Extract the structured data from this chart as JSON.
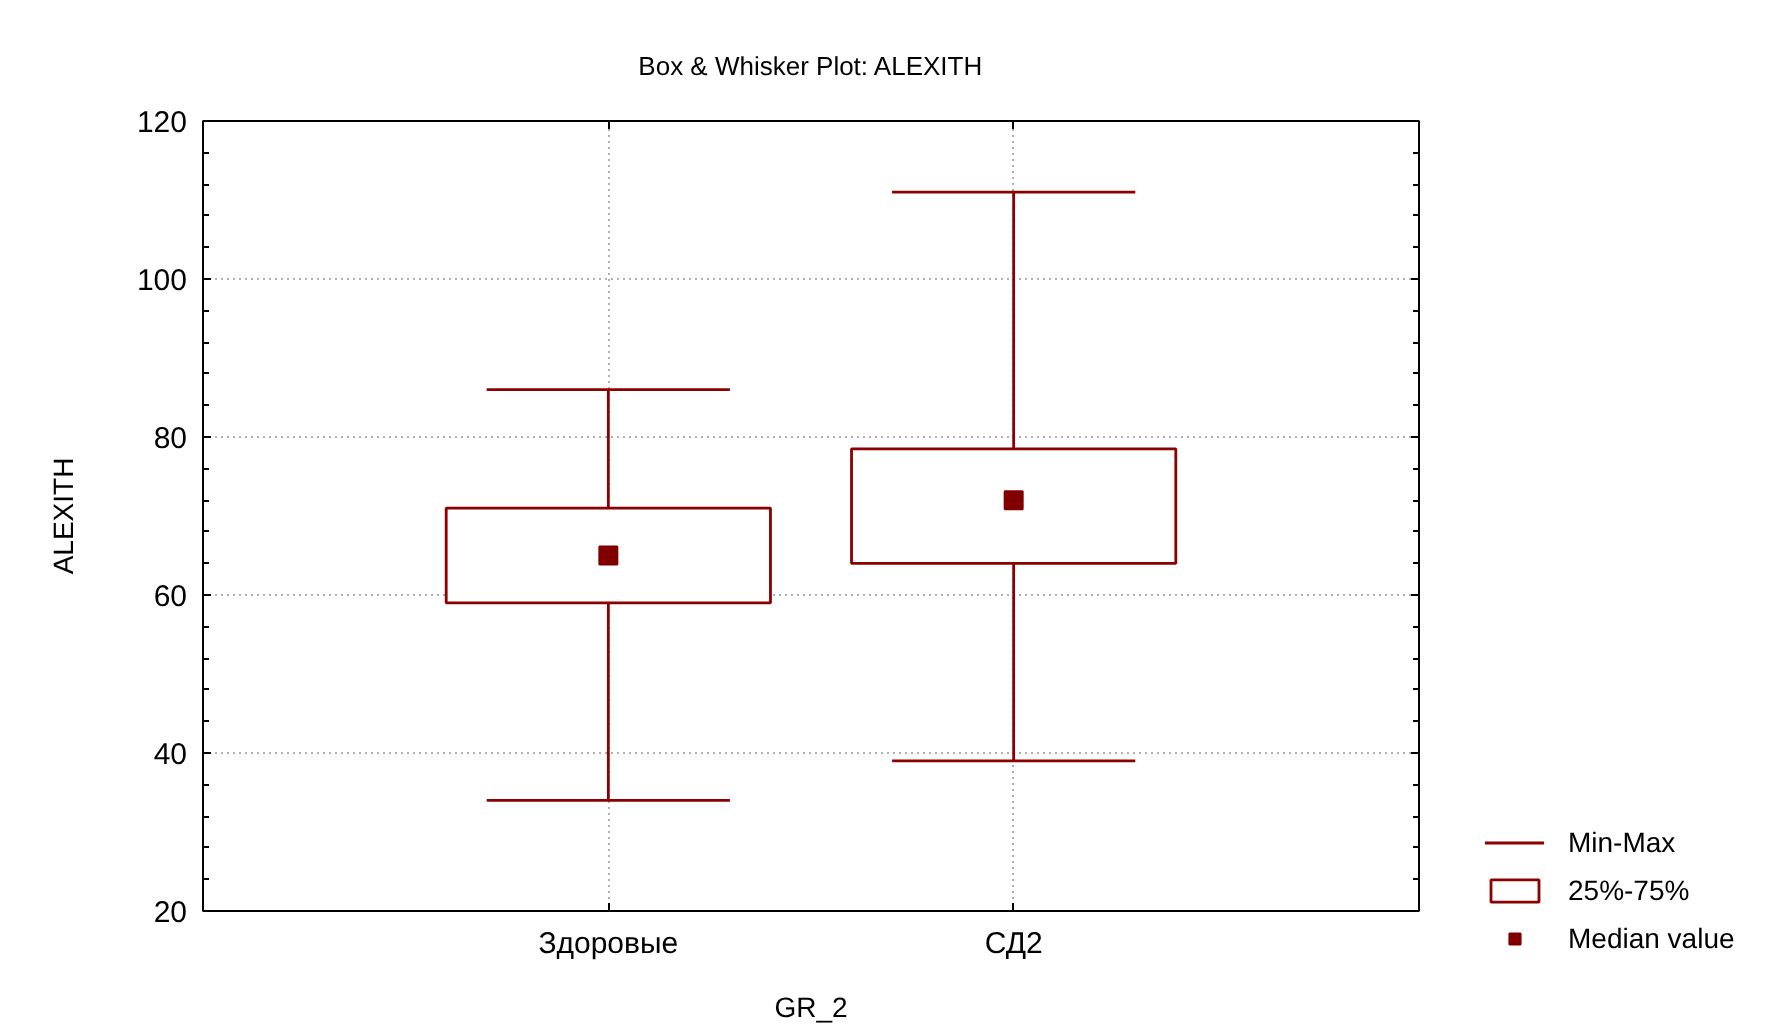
{
  "chart_data": {
    "type": "box",
    "title": "Box & Whisker Plot: ALEXITH",
    "xlabel": "GR_2",
    "ylabel": "ALEXITH",
    "categories": [
      "Здоровые",
      "СД2"
    ],
    "series": [
      {
        "name": "25%-75%",
        "color": "#8b0000",
        "boxes": [
          {
            "low": 34,
            "q1": 59,
            "q3": 71,
            "high": 86
          },
          {
            "low": 39,
            "q1": 64,
            "q3": 78.5,
            "high": 111
          }
        ]
      },
      {
        "name": "Median value",
        "type": "scatter",
        "color": "#800000",
        "values": [
          65,
          72
        ]
      }
    ],
    "marker": "square",
    "annotations": [
      "Min-Max"
    ],
    "ylim": [
      20,
      120
    ],
    "yticks": [
      20,
      {
        "value": 24,
        "label": null
      },
      {
        "value": 28,
        "label": null
      },
      {
        "value": 32,
        "label": null
      },
      {
        "value": 36,
        "label": null
      },
      40,
      {
        "value": 44,
        "label": null
      },
      {
        "value": 48,
        "label": null
      },
      {
        "value": 52,
        "label": null
      },
      {
        "value": 56,
        "label": null
      },
      60,
      {
        "value": 64,
        "label": null
      },
      {
        "value": 68,
        "label": null
      },
      {
        "value": 72,
        "label": null
      },
      {
        "value": 76,
        "label": null
      },
      80,
      {
        "value": 84,
        "label": null
      },
      {
        "value": 88,
        "label": null
      },
      {
        "value": 92,
        "label": null
      },
      {
        "value": 96,
        "label": null
      },
      100,
      {
        "value": 104,
        "label": null
      },
      {
        "value": 108,
        "label": null
      },
      {
        "value": 112,
        "label": null
      },
      {
        "value": 116,
        "label": null
      },
      120
    ],
    "grid": true,
    "legend": "bottom right"
  }
}
